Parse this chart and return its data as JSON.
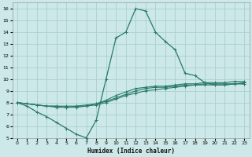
{
  "xlabel": "Humidex (Indice chaleur)",
  "bg_color": "#cce8e8",
  "grid_color": "#aacfcf",
  "line_color": "#2a7a6a",
  "xlim": [
    -0.5,
    23.5
  ],
  "ylim": [
    5,
    16.5
  ],
  "xticks": [
    0,
    1,
    2,
    3,
    4,
    5,
    6,
    7,
    8,
    9,
    10,
    11,
    12,
    13,
    14,
    15,
    16,
    17,
    18,
    19,
    20,
    21,
    22,
    23
  ],
  "yticks": [
    5,
    6,
    7,
    8,
    9,
    10,
    11,
    12,
    13,
    14,
    15,
    16
  ],
  "line1_x": [
    0,
    1,
    2,
    3,
    4,
    5,
    6,
    7,
    8,
    9,
    10,
    11,
    12,
    13,
    14,
    15,
    16,
    17,
    18,
    19,
    20,
    21,
    22,
    23
  ],
  "line1_y": [
    8.0,
    7.7,
    7.2,
    6.8,
    6.3,
    5.8,
    5.3,
    5.0,
    6.5,
    10.0,
    13.5,
    14.0,
    16.0,
    15.8,
    14.0,
    13.2,
    12.5,
    10.5,
    10.3,
    9.7,
    9.5,
    9.5,
    9.6,
    9.6
  ],
  "line2_x": [
    0,
    1,
    2,
    3,
    4,
    5,
    6,
    7,
    8,
    9,
    10,
    11,
    12,
    13,
    14,
    15,
    16,
    17,
    18,
    19,
    20,
    21,
    22,
    23
  ],
  "line2_y": [
    8.0,
    7.9,
    7.8,
    7.7,
    7.6,
    7.6,
    7.6,
    7.7,
    7.8,
    8.0,
    8.3,
    8.6,
    8.8,
    9.0,
    9.1,
    9.2,
    9.3,
    9.4,
    9.5,
    9.5,
    9.5,
    9.5,
    9.6,
    9.6
  ],
  "line3_x": [
    0,
    1,
    2,
    3,
    4,
    5,
    6,
    7,
    8,
    9,
    10,
    11,
    12,
    13,
    14,
    15,
    16,
    17,
    18,
    19,
    20,
    21,
    22,
    23
  ],
  "line3_y": [
    8.0,
    7.9,
    7.8,
    7.7,
    7.7,
    7.6,
    7.7,
    7.7,
    7.9,
    8.1,
    8.4,
    8.7,
    9.0,
    9.2,
    9.3,
    9.3,
    9.4,
    9.5,
    9.5,
    9.6,
    9.6,
    9.6,
    9.6,
    9.7
  ],
  "line4_x": [
    0,
    1,
    2,
    3,
    4,
    5,
    6,
    7,
    8,
    9,
    10,
    11,
    12,
    13,
    14,
    15,
    16,
    17,
    18,
    19,
    20,
    21,
    22,
    23
  ],
  "line4_y": [
    8.0,
    7.9,
    7.8,
    7.7,
    7.7,
    7.7,
    7.7,
    7.8,
    7.9,
    8.2,
    8.6,
    8.9,
    9.2,
    9.3,
    9.4,
    9.4,
    9.5,
    9.6,
    9.6,
    9.7,
    9.7,
    9.7,
    9.8,
    9.8
  ]
}
